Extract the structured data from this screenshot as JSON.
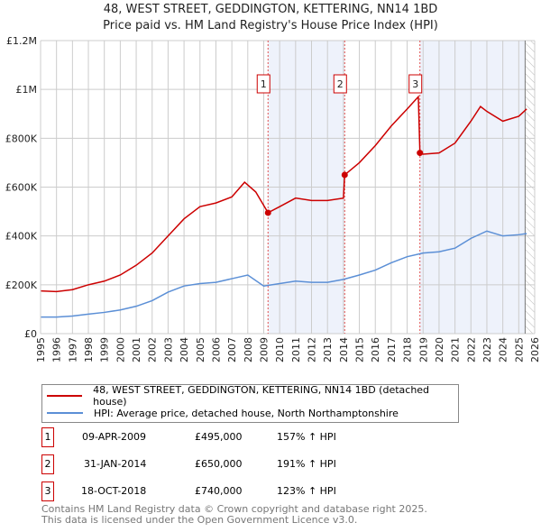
{
  "title": "48, WEST STREET, GEDDINGTON, KETTERING, NN14 1BD",
  "subtitle": "Price paid vs. HM Land Registry's House Price Index (HPI)",
  "chart_data": {
    "type": "line",
    "xlim": [
      1995,
      2026
    ],
    "ylim": [
      0,
      1200000
    ],
    "yticks": [
      {
        "v": 0,
        "label": "£0"
      },
      {
        "v": 200000,
        "label": "£200K"
      },
      {
        "v": 400000,
        "label": "£400K"
      },
      {
        "v": 600000,
        "label": "£600K"
      },
      {
        "v": 800000,
        "label": "£800K"
      },
      {
        "v": 1000000,
        "label": "£1M"
      },
      {
        "v": 1200000,
        "label": "£1.2M"
      }
    ],
    "xticks": [
      1995,
      1996,
      1997,
      1998,
      1999,
      2000,
      2001,
      2002,
      2003,
      2004,
      2005,
      2006,
      2007,
      2008,
      2009,
      2010,
      2011,
      2012,
      2013,
      2014,
      2015,
      2016,
      2017,
      2018,
      2019,
      2020,
      2021,
      2022,
      2023,
      2024,
      2025,
      2026
    ],
    "series": [
      {
        "name": "48, WEST STREET, GEDDINGTON, KETTERING, NN14 1BD (detached house)",
        "color": "#cc0000",
        "x": [
          1995,
          1996,
          1997,
          1998,
          1999,
          2000,
          2001,
          2002,
          2003,
          2004,
          2005,
          2006,
          2007,
          2007.8,
          2008.5,
          2009.27,
          2010,
          2011,
          2012,
          2013,
          2014.0,
          2014.08,
          2015,
          2016,
          2017,
          2018,
          2018.7,
          2018.8,
          2019,
          2020,
          2021,
          2022,
          2022.6,
          2023,
          2024,
          2025,
          2025.5
        ],
        "y": [
          175000,
          172000,
          180000,
          200000,
          215000,
          240000,
          280000,
          330000,
          400000,
          470000,
          520000,
          535000,
          560000,
          620000,
          580000,
          495000,
          520000,
          555000,
          545000,
          545000,
          555000,
          650000,
          700000,
          770000,
          850000,
          920000,
          970000,
          740000,
          735000,
          740000,
          780000,
          870000,
          930000,
          910000,
          870000,
          890000,
          920000
        ]
      },
      {
        "name": "HPI: Average price, detached house, North Northamptonshire",
        "color": "#5b8fd6",
        "x": [
          1995,
          1996,
          1997,
          1998,
          1999,
          2000,
          2001,
          2002,
          2003,
          2004,
          2005,
          2006,
          2007,
          2008,
          2009,
          2010,
          2011,
          2012,
          2013,
          2014,
          2015,
          2016,
          2017,
          2018,
          2019,
          2020,
          2021,
          2022,
          2023,
          2024,
          2025,
          2025.5
        ],
        "y": [
          68000,
          68000,
          72000,
          80000,
          87000,
          97000,
          112000,
          135000,
          170000,
          195000,
          205000,
          210000,
          225000,
          240000,
          195000,
          205000,
          215000,
          210000,
          210000,
          222000,
          240000,
          260000,
          290000,
          315000,
          330000,
          335000,
          350000,
          390000,
          420000,
          400000,
          405000,
          410000
        ]
      }
    ],
    "sales": [
      {
        "id": "1",
        "x": 2009.27,
        "price": 495000,
        "date": "09-APR-2009",
        "price_label": "£495,000",
        "hpi": "157% ↑ HPI"
      },
      {
        "id": "2",
        "x": 2014.08,
        "price": 650000,
        "date": "31-JAN-2014",
        "price_label": "£650,000",
        "hpi": "191% ↑ HPI"
      },
      {
        "id": "3",
        "x": 2018.8,
        "price": 740000,
        "date": "18-OCT-2018",
        "price_label": "£740,000",
        "hpi": "123% ↑ HPI"
      }
    ],
    "forecast_start": 2025.4
  },
  "footer": [
    "Contains HM Land Registry data © Crown copyright and database right 2025.",
    "This data is licensed under the Open Government Licence v3.0."
  ]
}
